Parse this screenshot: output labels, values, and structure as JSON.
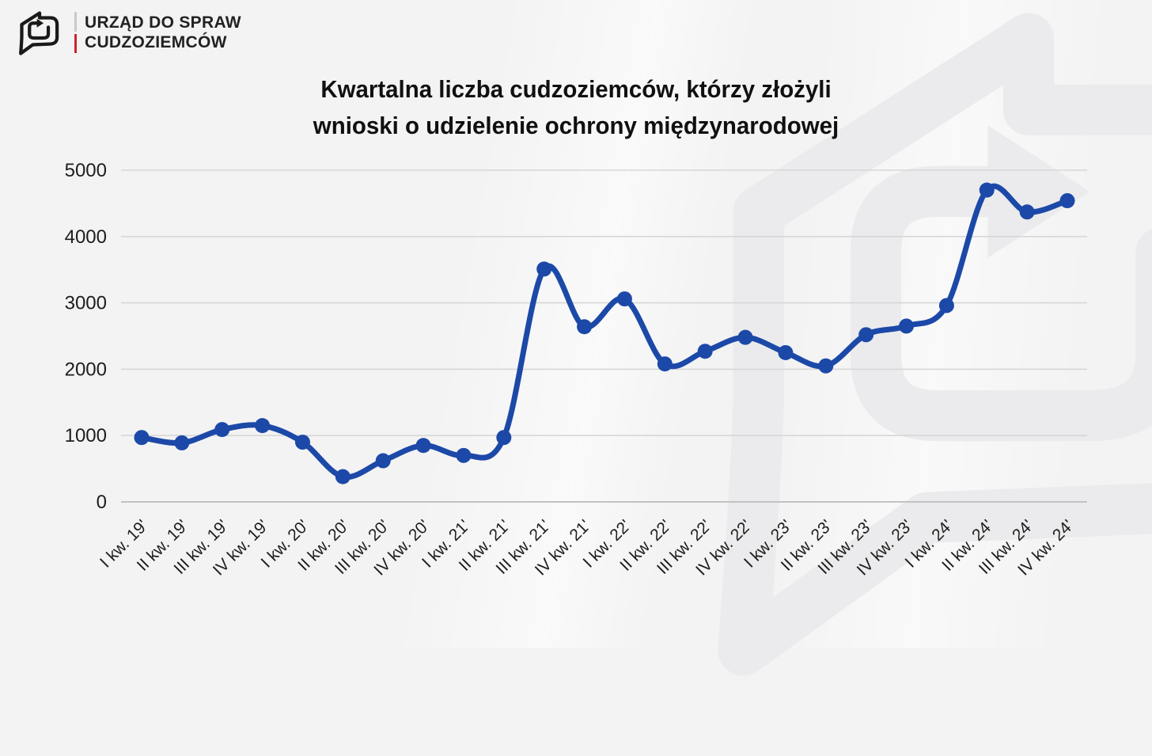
{
  "header": {
    "org_name_line1": "URZĄD DO SPRAW",
    "org_name_line2": "CUDZOZIEMCÓW",
    "accent_color": "#d2232a",
    "logo_icon": "document-refresh-arrow"
  },
  "chart_data": {
    "type": "line",
    "title_line1": "Kwartalna liczba cudzoziemców, którzy złożyli",
    "title_line2": "wnioski o udzielenie ochrony międzynarodowej",
    "categories": [
      "I kw. 19'",
      "II kw. 19'",
      "III kw. 19'",
      "IV kw. 19'",
      "I kw. 20'",
      "II kw. 20'",
      "III kw. 20'",
      "IV kw. 20'",
      "I kw. 21'",
      "II kw. 21'",
      "III kw. 21'",
      "IV kw. 21'",
      "I kw. 22'",
      "II kw. 22'",
      "III kw. 22'",
      "IV kw. 22'",
      "I kw. 23'",
      "II kw. 23'",
      "III kw. 23'",
      "IV kw. 23'",
      "I kw. 24'",
      "II kw. 24'",
      "III kw. 24'",
      "IV kw. 24'"
    ],
    "values": [
      970,
      890,
      1090,
      1150,
      900,
      380,
      620,
      850,
      700,
      970,
      3510,
      2640,
      3060,
      2080,
      2270,
      2480,
      2250,
      2050,
      2520,
      2650,
      2960,
      4700,
      4370,
      4540
    ],
    "yticks": [
      0,
      1000,
      2000,
      3000,
      4000,
      5000
    ],
    "ylim": [
      0,
      5000
    ],
    "grid": true,
    "legend": false,
    "line_color": "#1c49a8",
    "grid_color": "#d7d7d7",
    "axis_color": "#c2c2c2",
    "tick_label_color": "#1d1d1b",
    "marker": "circle"
  }
}
